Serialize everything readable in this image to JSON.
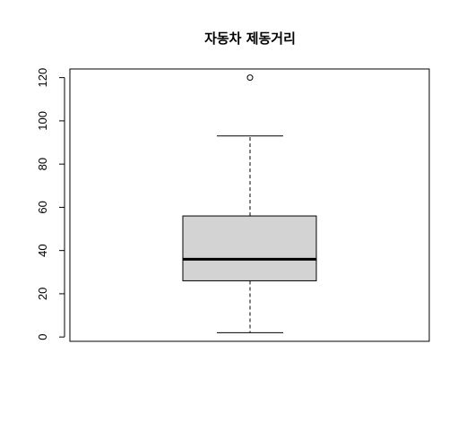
{
  "chart_data": {
    "type": "boxplot",
    "title": "자동차 제동거리",
    "xlabel": "",
    "ylabel": "",
    "ylim": [
      -2,
      124
    ],
    "yticks": [
      0,
      20,
      40,
      60,
      80,
      100,
      120
    ],
    "grid": false,
    "box": {
      "whisker_low": 2,
      "q1": 26,
      "median": 36,
      "q3": 56,
      "whisker_high": 93,
      "outliers": [
        120
      ]
    },
    "colors": {
      "box_fill": "#d3d3d3",
      "stroke": "#000000"
    }
  }
}
